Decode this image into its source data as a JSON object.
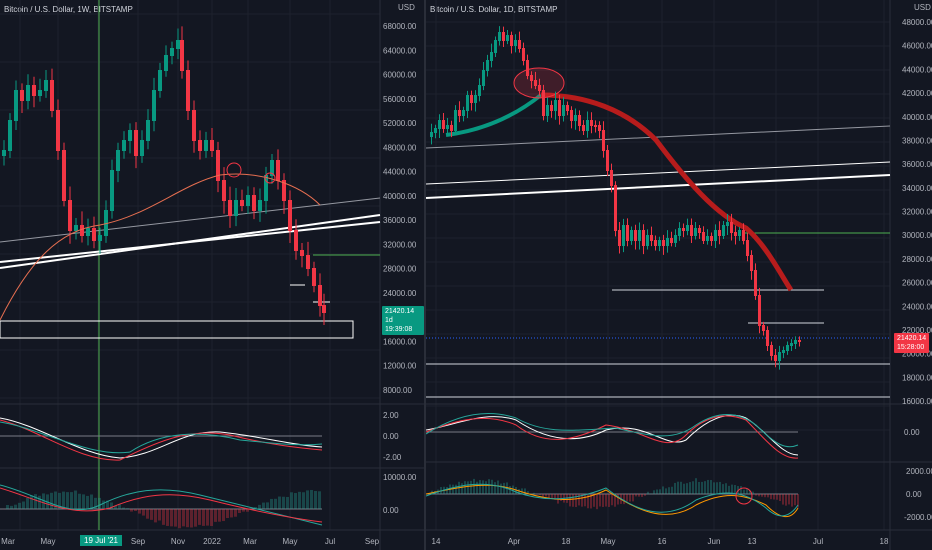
{
  "left": {
    "title": "",
    "usd_label": "USD",
    "y_ticks": [
      "68000.00",
      "64000.00",
      "60000.00",
      "56000.00",
      "52000.00",
      "48000.00",
      "44000.00",
      "40000.00",
      "36000.00",
      "32000.00",
      "28000.00",
      "24000.00",
      "20000.00",
      "16000.00",
      "12000.00",
      "8000.00"
    ],
    "price_tag": {
      "value": "21420.14",
      "sub": "1d 19:39:08",
      "color": "#089981"
    },
    "osc1_ticks": [
      "2.00",
      "0.00",
      "-2.00"
    ],
    "osc2_ticks": [
      "10000.00",
      "0.00"
    ],
    "x_ticks": [
      "Mar",
      "May",
      "Sep",
      "Nov",
      "2022",
      "Mar",
      "May",
      "Jul",
      "Sep"
    ],
    "date_chip": "19 Jul '21"
  },
  "right": {
    "title": "Bitcoin / U.S. Dollar, 1D, BITSTAMP",
    "usd_label": "USD",
    "y_ticks": [
      "48000.00",
      "46000.00",
      "44000.00",
      "42000.00",
      "40000.00",
      "38000.00",
      "36000.00",
      "34000.00",
      "32000.00",
      "30000.00",
      "28000.00",
      "26000.00",
      "24000.00",
      "22000.00",
      "20000.00",
      "18000.00",
      "16000.00"
    ],
    "price_tag": {
      "value": "21420.14",
      "sub": "15:28:00",
      "color": "#f23645"
    },
    "osc1_ticks": [
      "0.00"
    ],
    "osc2_ticks": [
      "2000.00",
      "0.00",
      "-2000.00"
    ],
    "x_ticks": [
      "14",
      "Apr",
      "18",
      "May",
      "16",
      "Jun",
      "13",
      "Jul",
      "18"
    ]
  },
  "left_header": "Bitcoin / U.S. Dollar, 1W, BITSTAMP",
  "colors": {
    "up": "#089981",
    "down": "#f23645",
    "bg": "#131722",
    "grid": "#1e222d"
  }
}
